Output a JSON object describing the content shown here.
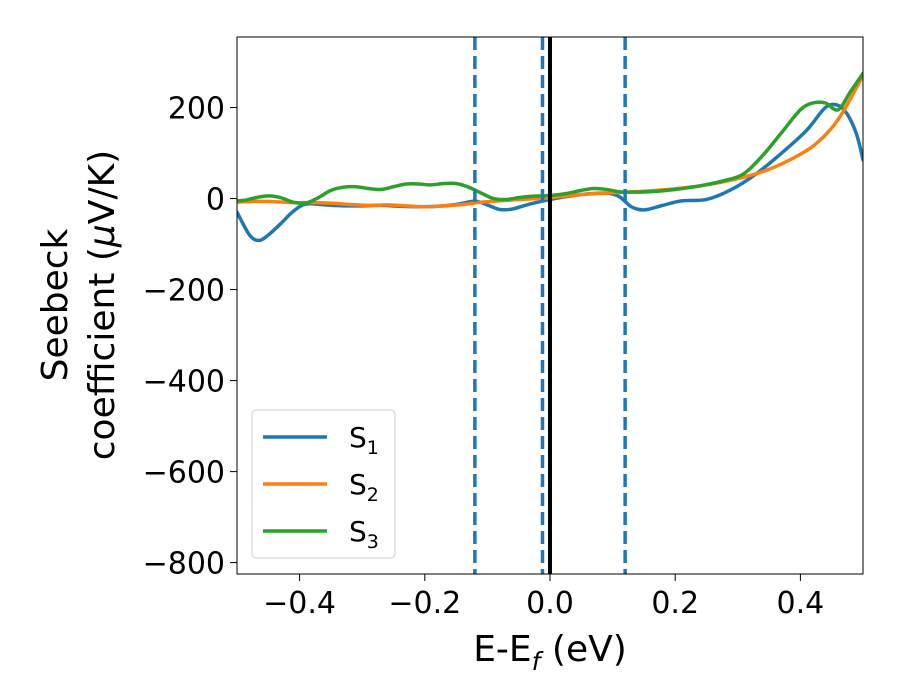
{
  "chart_data": {
    "type": "line",
    "title": "",
    "xlabel": {
      "main": "E-E",
      "sub": "f",
      "unit": " (eV)"
    },
    "ylabel": {
      "line1": "Seebeck",
      "line2_text": "coefficient  (",
      "line2_mu": "μ",
      "line2_unit": "V/K)"
    },
    "xlim": [
      -0.5,
      0.5
    ],
    "ylim": [
      -825,
      355
    ],
    "xticks": [
      {
        "value": -0.4,
        "label": "−0.4"
      },
      {
        "value": -0.2,
        "label": "−0.2"
      },
      {
        "value": 0.0,
        "label": "0.0"
      },
      {
        "value": 0.2,
        "label": "0.2"
      },
      {
        "value": 0.4,
        "label": "0.4"
      }
    ],
    "yticks": [
      {
        "value": 200,
        "label": "200"
      },
      {
        "value": 0,
        "label": "0"
      },
      {
        "value": -200,
        "label": "−200"
      },
      {
        "value": -400,
        "label": "−400"
      },
      {
        "value": -600,
        "label": "−600"
      },
      {
        "value": -800,
        "label": "−800"
      }
    ],
    "grid": false,
    "legend_position": "lower-left",
    "vlines": [
      {
        "x": -0.12,
        "style": "dashed",
        "color": "#1f77b4"
      },
      {
        "x": -0.012,
        "style": "dashed",
        "color": "#1f77b4"
      },
      {
        "x": 0.0,
        "style": "solid",
        "color": "#000000"
      },
      {
        "x": 0.12,
        "style": "dashed",
        "color": "#1f77b4"
      }
    ],
    "series": [
      {
        "name": "S",
        "sub": "1",
        "color": "#1f77b4",
        "x": [
          -0.5,
          -0.48,
          -0.465,
          -0.45,
          -0.43,
          -0.41,
          -0.39,
          -0.36,
          -0.33,
          -0.3,
          -0.27,
          -0.24,
          -0.21,
          -0.18,
          -0.15,
          -0.12,
          -0.1,
          -0.08,
          -0.06,
          -0.04,
          -0.02,
          0.0,
          0.03,
          0.06,
          0.09,
          0.11,
          0.13,
          0.15,
          0.18,
          0.21,
          0.25,
          0.29,
          0.33,
          0.37,
          0.41,
          0.44,
          0.46,
          0.475,
          0.49,
          0.5
        ],
        "y": [
          -30,
          -80,
          -92,
          -80,
          -55,
          -28,
          -12,
          -14,
          -16,
          -16,
          -15,
          -17,
          -18,
          -17,
          -13,
          -6,
          -14,
          -24,
          -23,
          -15,
          -8,
          -2,
          5,
          10,
          12,
          5,
          -18,
          -25,
          -15,
          -5,
          -2,
          20,
          55,
          100,
          150,
          200,
          205,
          185,
          140,
          85
        ]
      },
      {
        "name": "S",
        "sub": "2",
        "color": "#ff7f0e",
        "x": [
          -0.5,
          -0.47,
          -0.44,
          -0.41,
          -0.38,
          -0.35,
          -0.32,
          -0.29,
          -0.26,
          -0.23,
          -0.2,
          -0.17,
          -0.14,
          -0.11,
          -0.08,
          -0.05,
          -0.02,
          0.0,
          0.03,
          0.06,
          0.09,
          0.12,
          0.15,
          0.18,
          0.21,
          0.24,
          0.27,
          0.3,
          0.33,
          0.36,
          0.39,
          0.42,
          0.45,
          0.47,
          0.49,
          0.5
        ],
        "y": [
          -8,
          -6,
          -7,
          -9,
          -9,
          -10,
          -13,
          -15,
          -14,
          -16,
          -18,
          -16,
          -13,
          -8,
          -5,
          -2,
          0,
          2,
          6,
          10,
          12,
          14,
          16,
          19,
          23,
          28,
          35,
          44,
          55,
          70,
          90,
          115,
          155,
          195,
          245,
          270
        ]
      },
      {
        "name": "S",
        "sub": "3",
        "color": "#2ca02c",
        "x": [
          -0.5,
          -0.485,
          -0.47,
          -0.45,
          -0.43,
          -0.41,
          -0.39,
          -0.37,
          -0.35,
          -0.33,
          -0.31,
          -0.29,
          -0.27,
          -0.25,
          -0.23,
          -0.21,
          -0.19,
          -0.17,
          -0.15,
          -0.13,
          -0.11,
          -0.09,
          -0.07,
          -0.05,
          -0.03,
          -0.01,
          0.01,
          0.03,
          0.05,
          0.07,
          0.09,
          0.11,
          0.13,
          0.16,
          0.2,
          0.24,
          0.28,
          0.31,
          0.34,
          0.37,
          0.4,
          0.42,
          0.44,
          0.46,
          0.48,
          0.5
        ],
        "y": [
          -5,
          -3,
          2,
          6,
          2,
          -8,
          -10,
          2,
          18,
          25,
          26,
          22,
          20,
          26,
          32,
          32,
          30,
          33,
          33,
          25,
          12,
          0,
          -2,
          2,
          5,
          6,
          8,
          12,
          18,
          22,
          20,
          15,
          14,
          15,
          20,
          28,
          40,
          55,
          95,
          145,
          195,
          210,
          210,
          195,
          235,
          275
        ]
      }
    ]
  }
}
